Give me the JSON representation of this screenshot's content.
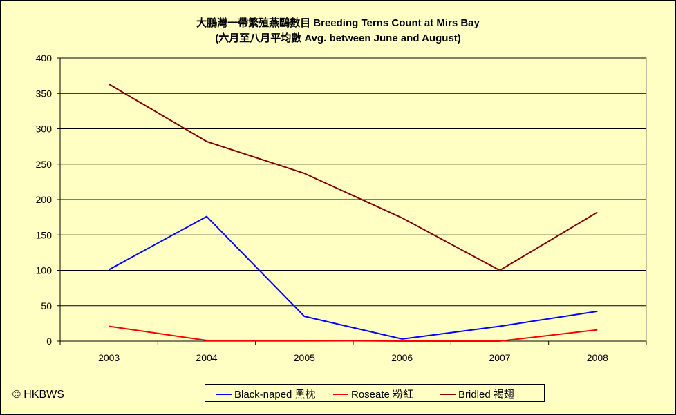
{
  "chart_data": {
    "type": "line",
    "title": "大鵬灣一帶繁殖燕鷗數目 Breeding Terns Count at Mirs Bay",
    "subtitle": "(六月至八月平均數 Avg. between June and August)",
    "categories": [
      "2003",
      "2004",
      "2005",
      "2006",
      "2007",
      "2008"
    ],
    "ylim": [
      0,
      400
    ],
    "yticks": [
      0,
      50,
      100,
      150,
      200,
      250,
      300,
      350,
      400
    ],
    "grid": true,
    "legend_position": "bottom",
    "series": [
      {
        "name": "Black-naped 黑枕",
        "color": "#0000ff",
        "values": [
          101,
          176,
          35,
          3,
          21,
          42
        ]
      },
      {
        "name": "Roseate 粉紅",
        "color": "#ff0000",
        "values": [
          21,
          1,
          1,
          0,
          0,
          16
        ]
      },
      {
        "name": "Bridled 褐翅",
        "color": "#800000",
        "values": [
          363,
          282,
          237,
          174,
          100,
          182
        ]
      }
    ]
  },
  "footer": {
    "copyright": "© HKBWS"
  },
  "colors": {
    "background": "#ffffc4",
    "plot_background": "#ffffc4",
    "grid": "#000000"
  }
}
